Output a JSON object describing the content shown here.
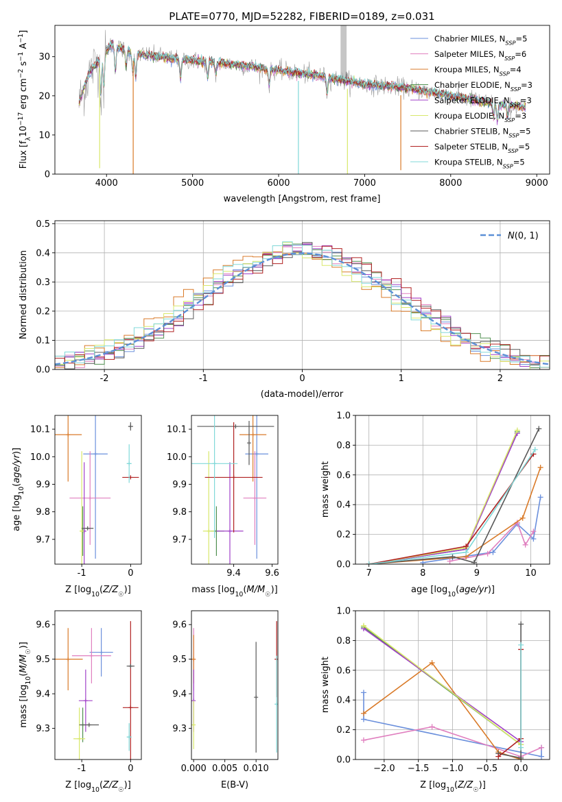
{
  "figure_title": "PLATE=0770, MJD=52282, FIBERID=0189, z=0.031",
  "colors": {
    "Chabrier MILES": "#6a8fdc",
    "Salpeter MILES": "#e07fbf",
    "Kroupa MILES": "#d97a28",
    "Chabrier ELODIE": "#4f8f4f",
    "Salpeter ELODIE": "#a040c8",
    "Kroupa ELODIE": "#d8e86a",
    "Chabrier STELIB": "#585858",
    "Salpeter STELIB": "#b02020",
    "Kroupa STELIB": "#80d8d8",
    "gaussian": "#5b8fd6",
    "grid": "#b0b0b0",
    "data": "#9a9a9a"
  },
  "chart_data": [
    {
      "id": "spectrum",
      "type": "line",
      "title": "PLATE=0770, MJD=52282, FIBERID=0189, z=0.031",
      "xlabel": "wavelength [Angstrom, rest frame]",
      "ylabel": "Flux [f_λ 10^-17 erg cm^-2 s^-1 A^-1]",
      "xlim": [
        3400,
        9150
      ],
      "ylim": [
        0,
        38
      ],
      "xticks": [
        4000,
        5000,
        6000,
        7000,
        8000,
        9000
      ],
      "yticks": [
        0,
        10,
        20,
        30
      ],
      "grid": false,
      "legend_position": "top-right",
      "legend": [
        {
          "model": "Chabrier MILES",
          "label": "Chabrier MILES, N",
          "sub": "SSP",
          "tail": "=5"
        },
        {
          "model": "Salpeter MILES",
          "label": "Salpeter MILES, N",
          "sub": "SSP",
          "tail": "=6"
        },
        {
          "model": "Kroupa MILES",
          "label": "Kroupa MILES, N",
          "sub": "SSP",
          "tail": "=4"
        },
        {
          "model": "Chabrier ELODIE",
          "label": "Chabrier ELODIE, N",
          "sub": "SSP",
          "tail": "=3"
        },
        {
          "model": "Salpeter ELODIE",
          "label": "Salpeter ELODIE, N",
          "sub": "SSP",
          "tail": "=3"
        },
        {
          "model": "Kroupa ELODIE",
          "label": "Kroupa ELODIE, N",
          "sub": "SSP",
          "tail": "=3"
        },
        {
          "model": "Chabrier STELIB",
          "label": "Chabrier STELIB, N",
          "sub": "SSP",
          "tail": "=5"
        },
        {
          "model": "Salpeter STELIB",
          "label": "Salpeter STELIB, N",
          "sub": "SSP",
          "tail": "=5"
        },
        {
          "model": "Kroupa STELIB",
          "label": "Kroupa STELIB, N",
          "sub": "SSP",
          "tail": "=5"
        }
      ],
      "continuum": {
        "x": [
          3680,
          3800,
          3950,
          4050,
          4300,
          4600,
          5000,
          5500,
          6000,
          6500,
          7000,
          7500,
          8000,
          8500,
          8870
        ],
        "y": [
          18,
          26,
          30,
          33,
          31,
          30,
          29,
          28,
          26.5,
          25,
          23,
          22,
          20,
          18,
          17
        ]
      },
      "spikes": [
        {
          "x": 3920,
          "to": 1.5,
          "model": "Kroupa ELODIE"
        },
        {
          "x": 4310,
          "to": 0,
          "model": "Kroupa MILES"
        },
        {
          "x": 6230,
          "to": 0,
          "model": "Kroupa STELIB"
        },
        {
          "x": 6800,
          "to": 0,
          "model": "Kroupa ELODIE"
        },
        {
          "x": 7420,
          "to": 1,
          "model": "Kroupa MILES"
        }
      ],
      "data_spike": {
        "x": [
          6720,
          6790
        ],
        "y": 38
      }
    },
    {
      "id": "residuals",
      "type": "histogram",
      "xlabel": "(data-model)/error",
      "ylabel": "Normed distribution",
      "xlim": [
        -2.5,
        2.5
      ],
      "ylim": [
        0,
        0.51
      ],
      "xticks": [
        -2,
        -1,
        0,
        1,
        2
      ],
      "yticks": [
        0.0,
        0.1,
        0.2,
        0.3,
        0.4,
        0.5
      ],
      "grid": true,
      "legend_position": "top-right",
      "legend": [
        {
          "label": "N(0, 1)",
          "style": "dashed"
        }
      ],
      "bin_width": 0.1
    },
    {
      "id": "age_vs_Z",
      "type": "scatter",
      "xlabel": "Z [log10(Z/Z☉)]",
      "ylabel": "age [log10(age/yr)]",
      "xlim": [
        -1.55,
        0.22
      ],
      "ylim": [
        9.61,
        10.15
      ],
      "xticks": [
        -1,
        0
      ],
      "yticks": [
        9.7,
        9.8,
        9.9,
        10.0,
        10.1
      ],
      "grid": false,
      "points": [
        {
          "model": "Chabrier MILES",
          "x": -0.72,
          "xerr": 0.25,
          "y": 10.01,
          "yerr": 0.38
        },
        {
          "model": "Salpeter MILES",
          "x": -0.83,
          "xerr": 0.42,
          "y": 9.85,
          "yerr": 0.17
        },
        {
          "model": "Kroupa MILES",
          "x": -1.28,
          "xerr": 0.28,
          "y": 10.08,
          "yerr": 0.17
        },
        {
          "model": "Chabrier ELODIE",
          "x": -0.98,
          "xerr": 0.04,
          "y": 9.73,
          "yerr": 0.09
        },
        {
          "model": "Salpeter ELODIE",
          "x": -0.95,
          "xerr": 0.04,
          "y": 9.73,
          "yerr": 0.25
        },
        {
          "model": "Kroupa ELODIE",
          "x": -1.0,
          "xerr": 0.04,
          "y": 9.73,
          "yerr": 0.29
        },
        {
          "model": "Chabrier STELIB",
          "x": -0.88,
          "xerr": 0.12,
          "y": 9.74,
          "yerr": 0.0
        },
        {
          "model": "Salpeter STELIB",
          "x": 0.0,
          "xerr": 0.17,
          "y": 9.925,
          "yerr": 0.0
        },
        {
          "model": "Kroupa STELIB",
          "x": -0.03,
          "xerr": 0.05,
          "y": 9.975,
          "yerr": 0.07
        },
        {
          "model": "Chabrier STELIB",
          "x": 0.0,
          "xerr": 0.05,
          "y": 10.11,
          "yerr": 0.015
        }
      ]
    },
    {
      "id": "age_vs_mass",
      "type": "scatter",
      "xlabel": "mass [log10(M/M☉)]",
      "ylabel": "",
      "xlim": [
        9.18,
        9.63
      ],
      "ylim": [
        9.61,
        10.15
      ],
      "xticks": [
        9.4,
        9.6
      ],
      "yticks": [
        9.7,
        9.8,
        9.9,
        10.0,
        10.1
      ],
      "grid": false,
      "points": [
        {
          "model": "Chabrier MILES",
          "x": 9.52,
          "xerr": 0.06,
          "y": 10.01,
          "yerr": 0.38
        },
        {
          "model": "Salpeter MILES",
          "x": 9.51,
          "xerr": 0.06,
          "y": 9.85,
          "yerr": 0.17
        },
        {
          "model": "Kroupa MILES",
          "x": 9.5,
          "xerr": 0.07,
          "y": 10.08,
          "yerr": 0.17
        },
        {
          "model": "Chabrier ELODIE",
          "x": 9.31,
          "xerr": 0.04,
          "y": 9.73,
          "yerr": 0.09
        },
        {
          "model": "Salpeter ELODIE",
          "x": 9.38,
          "xerr": 0.07,
          "y": 9.73,
          "yerr": 0.25
        },
        {
          "model": "Kroupa ELODIE",
          "x": 9.27,
          "xerr": 0.03,
          "y": 9.73,
          "yerr": 0.29
        },
        {
          "model": "Chabrier STELIB",
          "x": 9.41,
          "xerr": 0.2,
          "y": 10.11,
          "yerr": 0.0
        },
        {
          "model": "Salpeter STELIB",
          "x": 9.4,
          "xerr": 0.15,
          "y": 9.925,
          "yerr": 0.2
        },
        {
          "model": "Kroupa STELIB",
          "x": 9.3,
          "xerr": 0.12,
          "y": 9.975,
          "yerr": 0.27
        },
        {
          "model": "Chabrier STELIB",
          "x": 9.48,
          "xerr": 0.0,
          "y": 10.05,
          "yerr": 0.08
        }
      ]
    },
    {
      "id": "weight_vs_age",
      "type": "line",
      "xlabel": "age [log10(age/yr)]",
      "ylabel": "mass weight",
      "xlim": [
        6.75,
        10.35
      ],
      "ylim": [
        0,
        1.0
      ],
      "xticks": [
        7,
        8,
        9,
        10
      ],
      "yticks": [
        0.0,
        0.2,
        0.4,
        0.6,
        0.8,
        1.0
      ],
      "grid": true,
      "series": [
        {
          "model": "Chabrier MILES",
          "x": [
            8.0,
            8.55,
            9.3,
            9.75,
            10.05,
            10.18
          ],
          "y": [
            0.01,
            0.04,
            0.08,
            0.27,
            0.17,
            0.45
          ]
        },
        {
          "model": "Salpeter MILES",
          "x": [
            8.5,
            9.2,
            9.75,
            9.9,
            10.05
          ],
          "y": [
            0.02,
            0.07,
            0.28,
            0.13,
            0.22
          ]
        },
        {
          "model": "Kroupa MILES",
          "x": [
            7.0,
            8.8,
            9.85,
            10.18
          ],
          "y": [
            0.0,
            0.05,
            0.31,
            0.65
          ]
        },
        {
          "model": "Chabrier ELODIE",
          "x": [
            7.0,
            8.8,
            9.75
          ],
          "y": [
            0.0,
            0.1,
            0.89
          ]
        },
        {
          "model": "Salpeter ELODIE",
          "x": [
            7.0,
            8.8,
            9.75
          ],
          "y": [
            0.0,
            0.1,
            0.88
          ]
        },
        {
          "model": "Kroupa ELODIE",
          "x": [
            7.0,
            8.8,
            9.75
          ],
          "y": [
            0.0,
            0.11,
            0.9
          ]
        },
        {
          "model": "Chabrier STELIB",
          "x": [
            7.0,
            8.55,
            8.95,
            10.15
          ],
          "y": [
            0.0,
            0.05,
            0.01,
            0.91
          ]
        },
        {
          "model": "Salpeter STELIB",
          "x": [
            7.0,
            8.8,
            10.05
          ],
          "y": [
            0.0,
            0.12,
            0.74
          ]
        },
        {
          "model": "Kroupa STELIB",
          "x": [
            7.0,
            8.8,
            10.08
          ],
          "y": [
            0.0,
            0.08,
            0.77
          ]
        }
      ]
    },
    {
      "id": "mass_vs_Z",
      "type": "scatter",
      "xlabel": "Z [log10(Z/Z☉)]",
      "ylabel": "mass [log10(M/M☉)]",
      "xlim": [
        -1.55,
        0.22
      ],
      "ylim": [
        9.21,
        9.64
      ],
      "xticks": [
        -1,
        0
      ],
      "yticks": [
        9.3,
        9.4,
        9.5,
        9.6
      ],
      "grid": false,
      "points": [
        {
          "model": "Chabrier MILES",
          "x": -0.6,
          "xerr": 0.24,
          "y": 9.52,
          "yerr": 0.07
        },
        {
          "model": "Salpeter MILES",
          "x": -0.8,
          "xerr": 0.4,
          "y": 9.51,
          "yerr": 0.08
        },
        {
          "model": "Kroupa MILES",
          "x": -1.28,
          "xerr": 0.3,
          "y": 9.5,
          "yerr": 0.09
        },
        {
          "model": "Chabrier ELODIE",
          "x": -0.98,
          "xerr": 0.0,
          "y": 9.31,
          "yerr": 0.05
        },
        {
          "model": "Salpeter ELODIE",
          "x": -0.92,
          "xerr": 0.14,
          "y": 9.38,
          "yerr": 0.09
        },
        {
          "model": "Kroupa ELODIE",
          "x": -1.05,
          "xerr": 0.12,
          "y": 9.27,
          "yerr": 0.09
        },
        {
          "model": "Chabrier STELIB",
          "x": -0.85,
          "xerr": 0.2,
          "y": 9.31,
          "yerr": 0.0
        },
        {
          "model": "Salpeter STELIB",
          "x": 0.0,
          "xerr": 0.16,
          "y": 9.36,
          "yerr": 0.25
        },
        {
          "model": "Kroupa STELIB",
          "x": -0.03,
          "xerr": 0.05,
          "y": 9.275,
          "yerr": 0.04
        },
        {
          "model": "Chabrier STELIB",
          "x": 0.0,
          "xerr": 0.08,
          "y": 9.48,
          "yerr": 0.0
        }
      ]
    },
    {
      "id": "mass_vs_EBV",
      "type": "scatter",
      "xlabel": "E(B-V)",
      "ylabel": "",
      "xlim": [
        -0.00035,
        0.0135
      ],
      "ylim": [
        9.21,
        9.64
      ],
      "xticks": [
        0.0,
        0.005,
        0.01
      ],
      "xticklabels": [
        "0.000",
        "0.005",
        "0.010"
      ],
      "yticks": [
        9.3,
        9.4,
        9.5,
        9.6
      ],
      "grid": false,
      "points": [
        {
          "model": "Salpeter MILES",
          "x": 0.0,
          "xerr": 0.0,
          "y": 9.5,
          "yerr": 0.09
        },
        {
          "model": "Kroupa MILES",
          "x": 0.0,
          "xerr": 0.0,
          "y": 9.5,
          "yerr": 0.07
        },
        {
          "model": "Salpeter ELODIE",
          "x": 0.0,
          "xerr": 0.0,
          "y": 9.38,
          "yerr": 0.09
        },
        {
          "model": "Kroupa ELODIE",
          "x": 0.0,
          "xerr": 0.0,
          "y": 9.31,
          "yerr": 0.07
        },
        {
          "model": "Chabrier STELIB",
          "x": 0.01,
          "xerr": 0.0,
          "y": 9.39,
          "yerr": 0.16
        },
        {
          "model": "Salpeter STELIB",
          "x": 0.0133,
          "xerr": 0.0,
          "y": 9.5,
          "yerr": 0.11
        },
        {
          "model": "Kroupa STELIB",
          "x": 0.0133,
          "xerr": 0.0,
          "y": 9.37,
          "yerr": 0.14
        }
      ]
    },
    {
      "id": "weight_vs_Z",
      "type": "line",
      "xlabel": "Z [log10(Z/Z☉)]",
      "ylabel": "mass weight",
      "xlim": [
        -2.42,
        0.42
      ],
      "ylim": [
        0,
        1.0
      ],
      "xticks": [
        -2.0,
        -1.5,
        -1.0,
        -0.5,
        0.0
      ],
      "xticklabels": [
        "−2.0",
        "−1.5",
        "−1.0",
        "−0.5",
        "0.0"
      ],
      "yticks": [
        0.0,
        0.2,
        0.4,
        0.6,
        0.8,
        1.0
      ],
      "grid": true,
      "series": [
        {
          "model": "Chabrier MILES",
          "x": [
            -2.3,
            -2.3,
            0.3,
            0.3
          ],
          "y": [
            0.45,
            0.27,
            0.02,
            0.08
          ]
        },
        {
          "model": "Salpeter MILES",
          "x": [
            -2.3,
            -1.3,
            0.0,
            0.3
          ],
          "y": [
            0.13,
            0.22,
            0.02,
            0.08
          ]
        },
        {
          "model": "Kroupa MILES",
          "x": [
            -2.3,
            -1.3,
            -0.33,
            0.0
          ],
          "y": [
            0.31,
            0.65,
            0.05,
            0.0
          ]
        },
        {
          "model": "Chabrier ELODIE",
          "x": [
            -2.3,
            0.0
          ],
          "y": [
            0.89,
            0.1
          ]
        },
        {
          "model": "Salpeter ELODIE",
          "x": [
            -2.3,
            0.0
          ],
          "y": [
            0.88,
            0.12
          ]
        },
        {
          "model": "Kroupa ELODIE",
          "x": [
            -2.3,
            0.0
          ],
          "y": [
            0.9,
            0.1
          ]
        },
        {
          "model": "Chabrier STELIB",
          "x": [
            -0.33,
            0.0,
            0.0
          ],
          "y": [
            0.04,
            0.01,
            0.91
          ]
        },
        {
          "model": "Salpeter STELIB",
          "x": [
            -0.33,
            0.0,
            0.0
          ],
          "y": [
            0.02,
            0.14,
            0.74
          ]
        },
        {
          "model": "Kroupa STELIB",
          "x": [
            0.0,
            0.0
          ],
          "y": [
            0.08,
            0.77
          ]
        }
      ]
    }
  ]
}
